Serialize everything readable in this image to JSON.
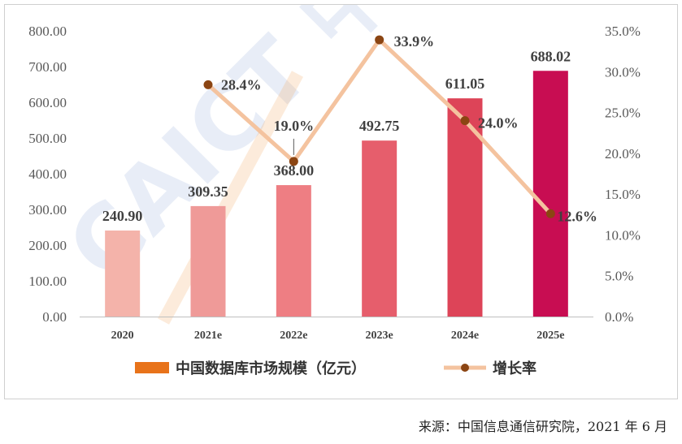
{
  "chart_data": {
    "type": "bar",
    "categories": [
      "2020",
      "2021e",
      "2022e",
      "2023e",
      "2024e",
      "2025e"
    ],
    "series": [
      {
        "name": "中国数据库市场规模（亿元）",
        "type": "bar",
        "axis": "left",
        "values": [
          240.9,
          309.35,
          368.0,
          492.75,
          611.05,
          688.02
        ],
        "labels": [
          "240.90",
          "309.35",
          "368.00",
          "492.75",
          "611.05",
          "688.02"
        ],
        "colors": [
          "#f4b3aa",
          "#ef9a98",
          "#ee7e83",
          "#e65e6c",
          "#dd4458",
          "#c80d52"
        ]
      },
      {
        "name": "增长率",
        "type": "line",
        "axis": "right",
        "values": [
          null,
          28.4,
          19.0,
          33.9,
          24.0,
          12.6
        ],
        "labels": [
          "",
          "28.4%",
          "19.0%",
          "33.9%",
          "24.0%",
          "12.6%"
        ],
        "line_color": "#f4c39f",
        "marker_color": "#8b4513"
      }
    ],
    "ylim_left": [
      0,
      800
    ],
    "yticks_left": [
      "0.00",
      "100.00",
      "200.00",
      "300.00",
      "400.00",
      "500.00",
      "600.00",
      "700.00",
      "800.00"
    ],
    "ylim_right": [
      0,
      35
    ],
    "yticks_right": [
      "0.0%",
      "5.0%",
      "10.0%",
      "15.0%",
      "20.0%",
      "25.0%",
      "30.0%",
      "35.0%"
    ],
    "legend": {
      "placement": "bottom",
      "bar_swatch_color": "#e8731a"
    },
    "grid": false,
    "watermark": "CAICT 中"
  },
  "source_note": "来源：中国信息通信研究院，2021 年 6 月"
}
